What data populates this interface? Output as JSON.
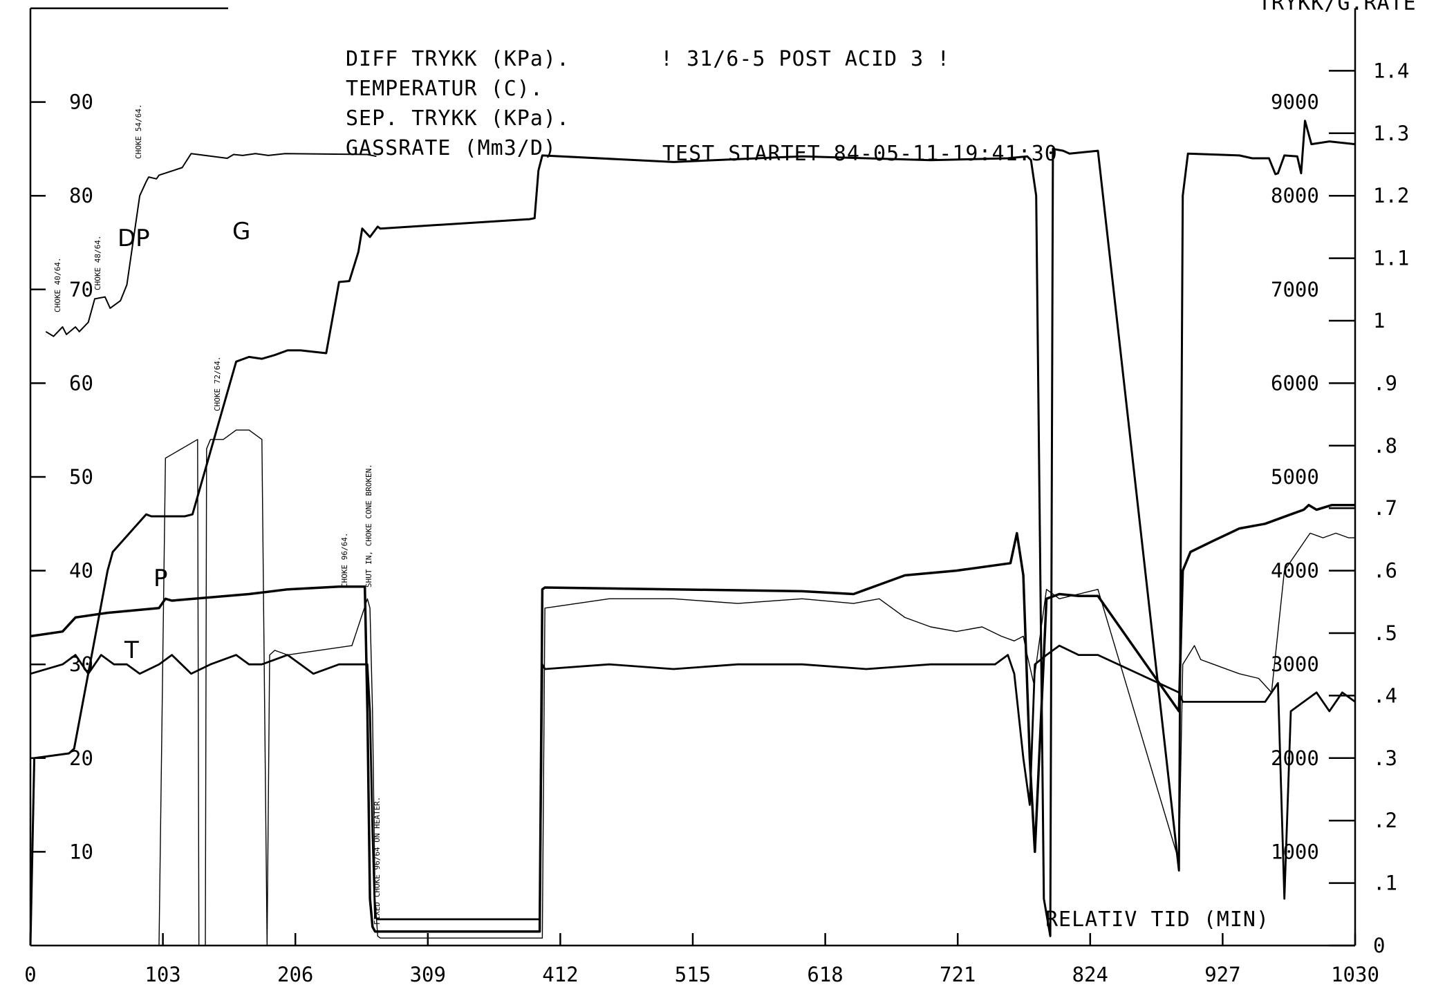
{
  "chart_data": {
    "type": "line",
    "header": {
      "line1": "DIFF TRYKK (KPa).",
      "test_id": "! 31/6-5 POST ACID 3 !",
      "line2": "TEMPERATUR (C).",
      "line3": "SEP. TRYKK (KPa).",
      "line4": "GASSRATE (Mm3/D)",
      "started": "TEST STARTET 84-05-11-19:41:30"
    },
    "corner_label": "TRYKK/G.RATE",
    "xlabel": "RELATIV TID (MIN)",
    "x_ticks": [
      "0",
      "103",
      "206",
      "309",
      "412",
      "515",
      "618",
      "721",
      "824",
      "927",
      "1030"
    ],
    "xlim": [
      0,
      1030
    ],
    "left_axis": {
      "ylim": [
        0,
        100
      ],
      "ticks": [
        "10",
        "20",
        "30",
        "40",
        "50",
        "60",
        "70",
        "80",
        "90"
      ]
    },
    "inner_right_axis": {
      "ylim": [
        0,
        10000
      ],
      "ticks": [
        "1000",
        "2000",
        "3000",
        "4000",
        "5000",
        "6000",
        "7000",
        "8000",
        "9000"
      ]
    },
    "right_axis": {
      "ylim": [
        0,
        1.5
      ],
      "ticks": [
        "0",
        ".1",
        ".2",
        ".3",
        ".4",
        ".5",
        ".6",
        ".7",
        ".8",
        ".9",
        "1",
        "1.1",
        "1.2",
        "1.3",
        "1.4"
      ]
    },
    "annotations": {
      "choke_40": "CHOKE 40/64.",
      "choke_48": "CHOKE 48/64.",
      "choke_54": "CHOKE 54/64.",
      "choke_72": "CHOKE 72/64.",
      "choke_96": "CHOKE 96/64.",
      "shut_in": "SHUT IN, CHOKE CONE BROKEN.",
      "fixed_choke": "FIXED CHOKE 96/64 ON HEATER."
    },
    "hand_labels": {
      "dp": "DP",
      "g": "G",
      "p": "P",
      "t": "T"
    },
    "series": [
      {
        "name": "DP",
        "x": [
          12,
          18,
          25,
          28,
          35,
          38,
          45,
          50,
          58,
          62,
          70,
          75,
          85,
          90,
          92,
          98,
          100,
          118,
          125,
          153,
          158,
          165,
          175,
          185,
          198,
          262,
          269
        ],
        "y": [
          65.5,
          65,
          66,
          65.2,
          66,
          65.5,
          66.5,
          69,
          69.2,
          68,
          68.8,
          70.5,
          80,
          81.5,
          82,
          81.8,
          82.2,
          83,
          84.5,
          84,
          84.4,
          84.3,
          84.5,
          84.3,
          84.5,
          84.4,
          84.2
        ]
      },
      {
        "name": "G",
        "x": [
          0,
          3,
          30,
          34,
          60,
          64,
          90,
          94,
          120,
          126,
          160,
          170,
          180,
          190,
          200,
          210,
          230,
          240,
          248,
          255,
          258,
          264,
          270,
          272,
          388,
          392,
          395,
          398,
          500,
          600,
          700,
          760,
          775,
          778,
          782,
          788,
          793,
          795,
          803,
          808,
          830,
          893,
          896,
          900,
          940,
          950,
          963,
          968,
          970,
          975,
          985,
          988,
          991,
          996,
          1010,
          1030
        ],
        "y": [
          0,
          20,
          20.5,
          21,
          40,
          42,
          46,
          45.8,
          45.8,
          46,
          62.3,
          62.8,
          62.6,
          63,
          63.5,
          63.5,
          63.2,
          70.8,
          70.9,
          74,
          76.5,
          75.6,
          76.7,
          76.5,
          77.5,
          77.6,
          82.7,
          84.3,
          83.6,
          84.2,
          83.8,
          84,
          84.2,
          83.8,
          80,
          5,
          1,
          85,
          84.8,
          84.5,
          84.8,
          8,
          80,
          84.5,
          84.3,
          84,
          84,
          82.3,
          82.4,
          84.3,
          84.2,
          82.4,
          88,
          85.5,
          85.8,
          85.5
        ]
      },
      {
        "name": "P",
        "x": [
          0,
          25,
          35,
          60,
          100,
          105,
          110,
          170,
          200,
          240,
          250,
          260,
          262,
          264,
          266,
          268,
          270,
          272,
          274,
          396,
          398,
          400,
          500,
          600,
          640,
          650,
          680,
          720,
          762,
          767,
          772,
          777,
          781,
          790,
          800,
          815,
          830,
          893,
          896,
          902,
          920,
          940,
          960,
          980,
          990,
          994,
          1000,
          1012,
          1030
        ],
        "y": [
          33,
          33.5,
          35,
          35.5,
          36,
          37,
          36.8,
          37.5,
          38,
          38.3,
          38.3,
          38.3,
          25,
          5,
          2,
          1.5,
          1.5,
          1.5,
          1.5,
          1.5,
          38,
          38.2,
          38,
          37.8,
          37.5,
          38,
          39.5,
          40,
          40.8,
          44,
          39.5,
          20,
          10,
          37,
          37.5,
          37.3,
          37.3,
          25,
          40,
          42,
          43.2,
          44.5,
          45,
          46,
          46.5,
          47,
          46.5,
          47,
          47
        ]
      },
      {
        "name": "T",
        "x": [
          0,
          25,
          35,
          45,
          55,
          65,
          75,
          85,
          100,
          110,
          125,
          140,
          160,
          170,
          180,
          200,
          220,
          240,
          262,
          264,
          266,
          268,
          270,
          272,
          274,
          396,
          398,
          400,
          450,
          500,
          550,
          600,
          650,
          700,
          750,
          760,
          765,
          772,
          777,
          781,
          790,
          800,
          815,
          830,
          893,
          896,
          920,
          940,
          960,
          970,
          975,
          980,
          990,
          1000,
          1010,
          1020,
          1030
        ],
        "y": [
          29,
          30,
          31,
          29,
          31,
          30,
          30,
          29,
          30,
          31,
          29,
          30,
          31,
          30,
          30,
          31,
          29,
          30,
          30,
          25,
          12,
          3,
          2.8,
          2.8,
          2.8,
          2.8,
          30,
          29.5,
          30,
          29.5,
          30,
          30,
          29.5,
          30,
          30,
          31,
          29,
          20,
          15,
          30,
          31,
          32,
          31,
          31,
          27,
          26,
          26,
          26,
          26,
          28,
          5,
          25,
          26,
          27,
          25,
          27,
          26
        ]
      },
      {
        "name": "SEP",
        "x": [
          0,
          100,
          105,
          130,
          131,
          136,
          137,
          140,
          150,
          160,
          170,
          180,
          184,
          186,
          190,
          200,
          250,
          262,
          264,
          266,
          268,
          270,
          272,
          274,
          396,
          398,
          400,
          450,
          500,
          550,
          600,
          640,
          660,
          680,
          700,
          720,
          740,
          755,
          765,
          772,
          775,
          780,
          790,
          800,
          815,
          830,
          893,
          896,
          905,
          910,
          920,
          940,
          955,
          965,
          975,
          985,
          995,
          1005,
          1015,
          1025,
          1030
        ],
        "y": [
          0,
          0,
          52,
          54,
          0,
          0,
          53,
          54,
          54,
          55,
          55,
          54,
          0,
          31,
          31.5,
          31,
          32,
          37,
          36,
          25,
          5,
          1,
          0.8,
          0.8,
          0.8,
          0.8,
          36,
          37,
          37,
          36.5,
          37,
          36.5,
          37,
          35,
          34,
          33.5,
          34,
          33,
          32.5,
          33,
          31,
          28,
          38,
          37,
          37.5,
          38,
          9,
          30,
          32,
          30.5,
          30,
          29,
          28.5,
          27,
          40,
          42,
          44,
          43.5,
          44,
          43.5,
          43.5
        ]
      }
    ]
  }
}
